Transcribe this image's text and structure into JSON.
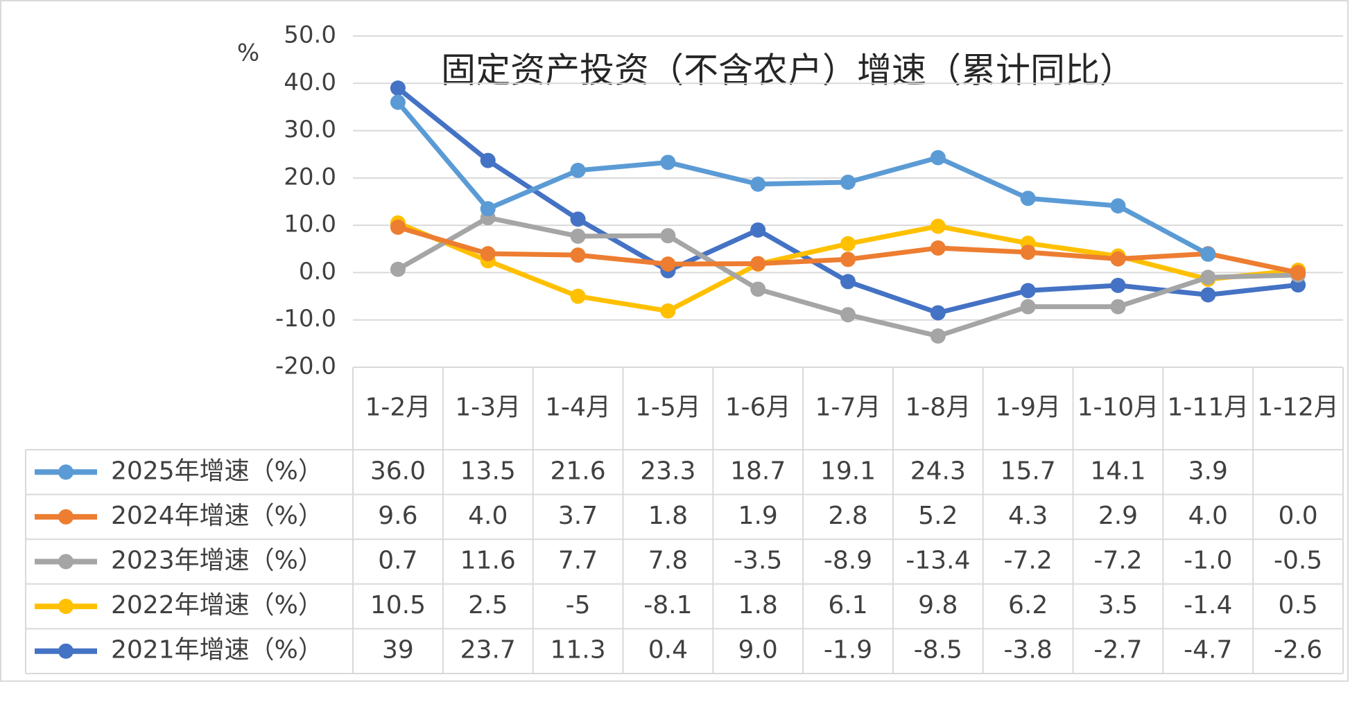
{
  "chart_data": {
    "type": "line",
    "title": "固定资产投资（不含农户）增速（累计同比）",
    "y_label": "%",
    "categories": [
      "1-2月",
      "1-3月",
      "1-4月",
      "1-5月",
      "1-6月",
      "1-7月",
      "1-8月",
      "1-9月",
      "1-10月",
      "1-11月",
      "1-12月"
    ],
    "ylim": [
      -20,
      50
    ],
    "yticks": [
      {
        "value": -20,
        "label": "-20.0"
      },
      {
        "value": -10,
        "label": "-10.0"
      },
      {
        "value": 0,
        "label": "0.0"
      },
      {
        "value": 10,
        "label": "10.0"
      },
      {
        "value": 20,
        "label": "20.0"
      },
      {
        "value": 30,
        "label": "30.0"
      },
      {
        "value": 40,
        "label": "40.0"
      },
      {
        "value": 50,
        "label": "50.0"
      }
    ],
    "grid": true,
    "series": [
      {
        "name": "2025年增速（%）",
        "color": "#5b9bd5",
        "values": [
          36,
          13.5,
          21.6,
          23.3,
          18.7,
          19.1,
          24.3,
          15.7,
          14.1,
          3.9,
          null
        ],
        "value_labels": [
          "36.0",
          "13.5",
          "21.6",
          "23.3",
          "18.7",
          "19.1",
          "24.3",
          "15.7",
          "14.1",
          "3.9",
          null
        ]
      },
      {
        "name": "2024年增速（%）",
        "color": "#ed7d31",
        "values": [
          9.6,
          4,
          3.7,
          1.8,
          1.9,
          2.8,
          5.2,
          4.3,
          2.9,
          4,
          0
        ],
        "value_labels": [
          "9.6",
          "4.0",
          "3.7",
          "1.8",
          "1.9",
          "2.8",
          "5.2",
          "4.3",
          "2.9",
          "4.0",
          "0.0"
        ]
      },
      {
        "name": "2023年增速（%）",
        "color": "#a5a5a5",
        "values": [
          0.7,
          11.6,
          7.7,
          7.8,
          -3.5,
          -8.9,
          -13.4,
          -7.2,
          -7.2,
          -1,
          -0.5
        ],
        "value_labels": [
          "0.7",
          "11.6",
          "7.7",
          "7.8",
          "-3.5",
          "-8.9",
          "-13.4",
          "-7.2",
          "-7.2",
          "-1.0",
          "-0.5"
        ]
      },
      {
        "name": "2022年增速（%）",
        "color": "#ffc000",
        "values": [
          10.5,
          2.5,
          -5,
          -8.1,
          1.8,
          6.1,
          9.8,
          6.2,
          3.5,
          -1.4,
          0.5
        ],
        "value_labels": [
          "10.5",
          "2.5",
          "-5",
          "-8.1",
          "1.8",
          "6.1",
          "9.8",
          "6.2",
          "3.5",
          "-1.4",
          "0.5"
        ]
      },
      {
        "name": "2021年增速（%）",
        "color": "#4472c4",
        "values": [
          39,
          23.7,
          11.3,
          0.4,
          9,
          -1.9,
          -8.5,
          -3.8,
          -2.7,
          -4.7,
          -2.6
        ],
        "value_labels": [
          "39",
          "23.7",
          "11.3",
          "0.4",
          "9.0",
          "-1.9",
          "-8.5",
          "-3.8",
          "-2.7",
          "-4.7",
          "-2.6"
        ]
      }
    ]
  }
}
